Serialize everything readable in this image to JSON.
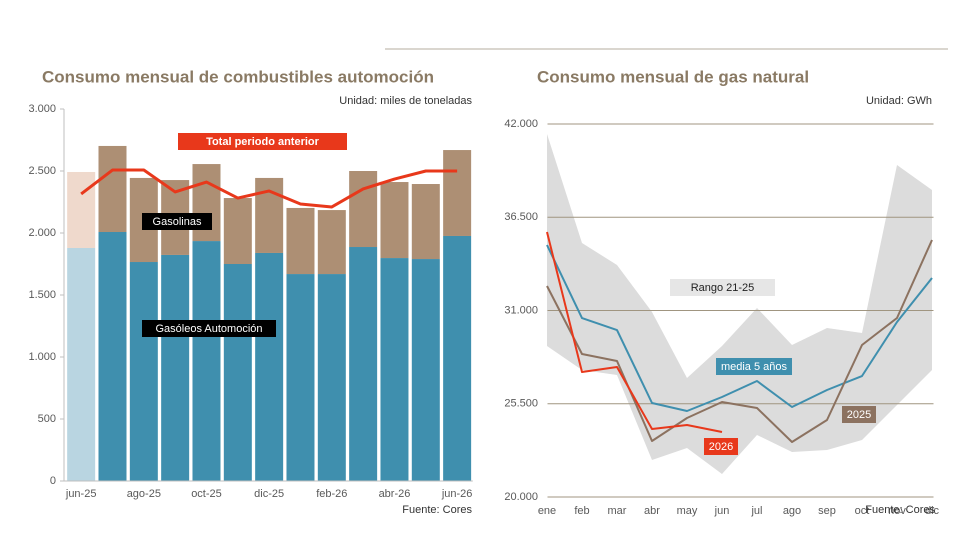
{
  "chart_data": [
    {
      "type": "bar",
      "stacked": true,
      "title": "Consumo mensual de combustibles automoción",
      "unit": "Unidad: miles de toneladas",
      "source": "Fuente: Cores",
      "categories": [
        "jun-25",
        null,
        "ago-25",
        null,
        "oct-25",
        null,
        "dic-25",
        null,
        "feb-26",
        null,
        "abr-26",
        null,
        "jun-26"
      ],
      "series": [
        {
          "name": "Gasóleos Automoción",
          "type": "bar",
          "color": "#3f8fae",
          "colors": [
            "#b9d5e1",
            "#3f8fae",
            "#3f8fae",
            "#3f8fae",
            "#3f8fae",
            "#3f8fae",
            "#3f8fae",
            "#3f8fae",
            "#3f8fae",
            "#3f8fae",
            "#3f8fae",
            "#3f8fae",
            "#3f8fae"
          ],
          "values": [
            1879,
            2008,
            1766,
            1823,
            1935,
            1750,
            1839,
            1669,
            1669,
            1887,
            1798,
            1790,
            1976
          ]
        },
        {
          "name": "Gasolinas",
          "type": "bar",
          "color": "#ad8f74",
          "colors": [
            "#efd9cc",
            "#ad8f74",
            "#ad8f74",
            "#ad8f74",
            "#ad8f74",
            "#ad8f74",
            "#ad8f74",
            "#ad8f74",
            "#ad8f74",
            "#ad8f74",
            "#ad8f74",
            "#ad8f74",
            "#ad8f74"
          ],
          "values": [
            613,
            694,
            678,
            604,
            621,
            532,
            605,
            533,
            516,
            613,
            613,
            605,
            693
          ]
        },
        {
          "name": "Total periodo anterior",
          "type": "line",
          "color": "#e8381b",
          "values": [
            2315,
            2508,
            2508,
            2331,
            2411,
            2282,
            2339,
            2234,
            2210,
            2355,
            2435,
            2500,
            2500
          ]
        }
      ],
      "ylim": [
        0,
        3000
      ],
      "yticks": [
        0,
        500,
        {
          "value": 1000,
          "label": "1.000"
        },
        {
          "value": 1500,
          "label": "1.500"
        },
        {
          "value": 2000,
          "label": "2.000"
        },
        {
          "value": 2500,
          "label": "2.500"
        },
        {
          "value": 3000,
          "label": "3.000"
        }
      ],
      "grid": false
    },
    {
      "type": "line",
      "title": "Consumo mensual de gas natural",
      "unit": "Unidad: GWh",
      "source": "Fuente: Cores",
      "categories": [
        "ene",
        "feb",
        "mar",
        "abr",
        "may",
        "jun",
        "jul",
        "ago",
        "sep",
        "oct",
        "nov",
        "dic"
      ],
      "band": {
        "name": "Rango 21-25",
        "color": "#dcdcdc",
        "upper": [
          41410,
          34981,
          33683,
          30911,
          27019,
          28906,
          31147,
          28965,
          29967,
          29673,
          39581,
          38107
        ],
        "lower": [
          28906,
          27490,
          27196,
          22182,
          22890,
          21357,
          23657,
          22654,
          22772,
          23362,
          25426,
          27490
        ]
      },
      "series": [
        {
          "name": "media 5 años",
          "color": "#3f8fae",
          "values": [
            34863,
            30557,
            29849,
            25544,
            25072,
            25898,
            26842,
            25308,
            26311,
            27136,
            30321,
            32916
          ]
        },
        {
          "name": "2025",
          "color": "#8c7260",
          "values": [
            32445,
            28434,
            28021,
            23303,
            24659,
            25603,
            25249,
            23244,
            24541,
            28965,
            30557,
            35158
          ]
        },
        {
          "name": "2026",
          "color": "#e8381b",
          "values": [
            35629,
            27372,
            27667,
            24011,
            24247,
            23834,
            null,
            null,
            null,
            null,
            null,
            null
          ]
        }
      ],
      "ylim": [
        20000,
        42000
      ],
      "yticks": [
        {
          "value": 20000,
          "label": "20.000"
        },
        {
          "value": 25500,
          "label": "25.500"
        },
        {
          "value": 31000,
          "label": "31.000"
        },
        {
          "value": 36500,
          "label": "36.500"
        },
        {
          "value": 42000,
          "label": "42.000"
        }
      ],
      "grid": true
    }
  ]
}
